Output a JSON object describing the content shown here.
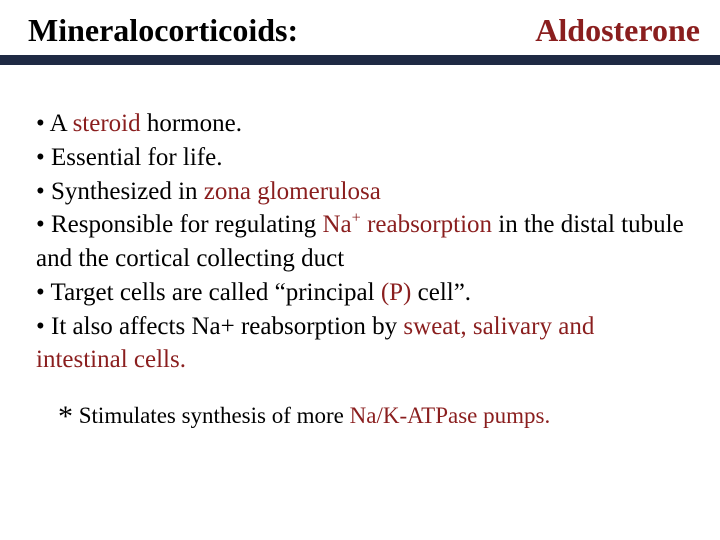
{
  "colors": {
    "text": "#000000",
    "highlight": "#8a1e1e",
    "title_bar": "#1f2a44",
    "background": "#ffffff"
  },
  "title": {
    "left": "Mineralocorticoids:",
    "right": "Aldosterone"
  },
  "bullets": {
    "b1_pre": "• A ",
    "b1_hl": "steroid",
    "b1_post": " hormone.",
    "b2": "• Essential for life.",
    "b3_pre": "• Synthesized in ",
    "b3_hl": "zona glomerulosa",
    "b4_pre": "• Responsible for regulating ",
    "b4_hl_a": "Na",
    "b4_sup": "+",
    "b4_hl_b": " reabsorption",
    "b4_post1": " in the distal tubule and the cortical collecting duct",
    "b5_pre": "• Target cells are called “principal ",
    "b5_hl": "(P)",
    "b5_post": " cell”.",
    "b6_pre": "• It also affects Na+ reabsorption by ",
    "b6_hl": "sweat, salivary and intestinal cells."
  },
  "footnote": {
    "star": "*",
    "pre": " Stimulates synthesis of more ",
    "hl": "Na/K-ATPase pumps."
  }
}
